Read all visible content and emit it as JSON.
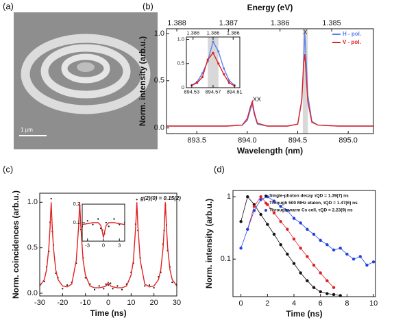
{
  "panel_a": {
    "label": "(a)",
    "scale_bar": "1 µm"
  },
  "chart_data": [
    {
      "type": "line",
      "panel": "(b)",
      "xlabel": "Wavelength (nm)",
      "ylabel": "Norm. intensity (arb.u.)",
      "x2label": "Energy (eV)",
      "xlim": [
        893.2,
        895.25
      ],
      "xticks": [
        893.5,
        {
          "value": 894.0,
          "label": "894.0"
        },
        894.5,
        {
          "value": 895.0,
          "label": "895.0"
        }
      ],
      "ylim": [
        -0.06,
        1.05
      ],
      "yticks": [
        {
          "value": 0.0,
          "label": "0.0"
        },
        0.5,
        {
          "value": 1.0,
          "label": "1.0"
        }
      ],
      "x2lim": [
        1.3882,
        1.38419
      ],
      "x2ticks": [
        1.388,
        1.387,
        1.386,
        1.385
      ],
      "shaded_x": [
        894.55,
        894.6
      ],
      "annotations": [
        "XX",
        "X"
      ],
      "legend": "upper right",
      "x": [
        893.2,
        893.5,
        893.8,
        893.95,
        894.0,
        894.03,
        894.05,
        894.07,
        894.1,
        894.2,
        894.4,
        894.5,
        894.54,
        894.56,
        894.57,
        894.58,
        894.6,
        894.64,
        894.7,
        894.9,
        895.25
      ],
      "series": [
        {
          "name": "H - pol.",
          "color": "#5b7ff0",
          "values": [
            0.02,
            0.02,
            0.02,
            0.03,
            0.08,
            0.19,
            0.25,
            0.14,
            0.04,
            0.02,
            0.02,
            0.04,
            0.28,
            0.75,
            1.0,
            0.8,
            0.35,
            0.07,
            0.03,
            0.02,
            0.02
          ]
        },
        {
          "name": "V - pol.",
          "color": "#e02020",
          "values": [
            0.02,
            0.02,
            0.02,
            0.03,
            0.1,
            0.22,
            0.28,
            0.16,
            0.05,
            0.02,
            0.02,
            0.04,
            0.3,
            0.7,
            0.78,
            0.62,
            0.28,
            0.06,
            0.03,
            0.02,
            0.02
          ]
        }
      ]
    },
    {
      "type": "line",
      "markers": true,
      "xlim": [
        894.52,
        894.62
      ],
      "xticks": [
        894.53,
        894.57,
        894.61
      ],
      "ylim": [
        0,
        1.05
      ],
      "yticks": [
        0,
        0.5,
        {
          "value": 1.0,
          "label": "1.0"
        }
      ],
      "x2lim": [
        1.38605,
        1.38589
      ],
      "x2ticks": [
        {
          "value": 1.38603,
          "label": "1.386"
        },
        {
          "value": 1.38597,
          "label": "1.386"
        },
        {
          "value": 1.38591,
          "label": "1.386"
        }
      ],
      "shaded_x": [
        894.56,
        894.58
      ],
      "x": [
        894.53,
        894.54,
        894.55,
        894.56,
        894.57,
        894.58,
        894.59,
        894.6,
        894.61
      ],
      "series": [
        {
          "color": "#5b7ff0",
          "values": [
            0.05,
            0.12,
            0.3,
            0.55,
            0.95,
            0.75,
            0.4,
            0.15,
            0.05
          ]
        },
        {
          "color": "#e02020",
          "values": [
            0.05,
            0.1,
            0.22,
            0.58,
            0.72,
            0.5,
            0.28,
            0.1,
            0.04
          ]
        }
      ]
    },
    {
      "type": "line",
      "panel": "(c)",
      "xlabel": "Time (ns)",
      "ylabel": "Norm. coincidences (arb.u.)",
      "annotation": "g(2)(0) = 0.15(2)",
      "xlim": [
        -30,
        30
      ],
      "xticks": [
        -30,
        -20,
        -10,
        0,
        10,
        20,
        30
      ],
      "ylim": [
        -0.03,
        1.1
      ],
      "yticks": [
        {
          "value": 0.0,
          "label": "0.0"
        },
        0.5,
        {
          "value": 1.0,
          "label": "1.0"
        }
      ],
      "x": [
        -30,
        -28,
        -27,
        -26,
        -25.5,
        -25,
        -24.5,
        -24,
        -23,
        -22,
        -20,
        -18,
        -16,
        -14,
        -13,
        -12.5,
        -12,
        -11,
        -10,
        -8,
        -6,
        -4,
        -2,
        -1,
        0,
        1,
        2,
        4,
        6,
        8,
        10,
        11,
        12,
        12.5,
        13,
        14,
        16,
        18,
        20,
        22,
        23,
        24,
        24.5,
        25,
        25.5,
        26,
        27,
        28,
        30
      ],
      "series": [
        {
          "type": "scatter",
          "color": "#111111",
          "values": [
            0.1,
            0.13,
            0.29,
            0.46,
            0.78,
            1.04,
            0.68,
            0.53,
            0.22,
            0.17,
            0.05,
            0.09,
            0.12,
            0.33,
            0.77,
            0.96,
            0.7,
            0.39,
            0.17,
            0.1,
            0.04,
            0.08,
            0.05,
            0.1,
            0.09,
            0.11,
            0.05,
            0.08,
            0.04,
            0.1,
            0.23,
            0.33,
            0.76,
            1.03,
            0.69,
            0.39,
            0.08,
            0.09,
            0.06,
            0.18,
            0.23,
            0.54,
            0.69,
            0.97,
            0.75,
            0.47,
            0.29,
            0.12,
            0.1
          ]
        },
        {
          "color": "#e02020",
          "values": [
            0.08,
            0.15,
            0.26,
            0.5,
            0.72,
            1.0,
            0.72,
            0.5,
            0.26,
            0.15,
            0.08,
            0.07,
            0.1,
            0.36,
            0.73,
            1.0,
            0.73,
            0.36,
            0.2,
            0.08,
            0.06,
            0.06,
            0.07,
            0.08,
            0.12,
            0.08,
            0.07,
            0.06,
            0.06,
            0.08,
            0.2,
            0.36,
            0.73,
            1.0,
            0.73,
            0.36,
            0.1,
            0.07,
            0.08,
            0.15,
            0.26,
            0.5,
            0.72,
            1.0,
            0.72,
            0.5,
            0.26,
            0.15,
            0.08
          ]
        }
      ]
    },
    {
      "type": "line",
      "xlim": [
        -4,
        4
      ],
      "xticks": [
        -3,
        0,
        3
      ],
      "ylim": [
        0,
        0.2
      ],
      "yticks": [
        0.1,
        0.2
      ],
      "x": [
        -4,
        -3,
        -2,
        -1,
        -0.5,
        -0.2,
        0,
        0.2,
        0.5,
        1,
        2,
        3,
        4
      ],
      "series": [
        {
          "type": "scatter",
          "color": "#111111",
          "values": [
            0.08,
            0.11,
            0.09,
            0.12,
            0.07,
            0.06,
            0.03,
            0.04,
            0.1,
            0.08,
            0.12,
            0.09,
            0.1
          ]
        },
        {
          "color": "#e02020",
          "values": [
            0.09,
            0.095,
            0.1,
            0.1,
            0.085,
            0.05,
            0.02,
            0.05,
            0.085,
            0.1,
            0.1,
            0.095,
            0.09
          ]
        }
      ]
    },
    {
      "type": "line",
      "markers": true,
      "panel": "(d)",
      "xlabel": "Time (ns)",
      "ylabel": "Norm. intensity (arb.u.)",
      "log_y": true,
      "legend": "upper right",
      "xlim": [
        -0.6,
        10.15
      ],
      "xticks": [
        0,
        2,
        4,
        6,
        8,
        10
      ],
      "ylim": [
        0.025,
        1.26
      ],
      "yticks": [
        0.1,
        1
      ],
      "series": [
        {
          "name": "Single-photon decay τQD = 1.39(7) ns",
          "color": "#111111",
          "x": [
            0,
            0.5,
            1,
            1.5,
            2,
            2.5,
            3,
            3.5,
            4,
            4.5,
            5,
            5.5,
            6,
            6.5,
            7,
            7.5
          ],
          "values": [
            0.4,
            1.0,
            0.75,
            0.52,
            0.36,
            0.25,
            0.17,
            0.12,
            0.085,
            0.06,
            0.045,
            0.035,
            0.03,
            0.028,
            0.027,
            0.026
          ]
        },
        {
          "name": "Through 500 MHz etalon, τQD = 1.47(6) ns",
          "color": "#e02020",
          "x": [
            0.5,
            1,
            1.5,
            2,
            2.5,
            3,
            3.5,
            4,
            4.5,
            5,
            5.5,
            6,
            6.5,
            7
          ],
          "values": [
            0.3,
            0.7,
            1.0,
            0.75,
            0.55,
            0.4,
            0.3,
            0.21,
            0.15,
            0.11,
            0.08,
            0.06,
            0.045,
            0.035
          ]
        },
        {
          "name": "Through warm Cs cell, τQD = 2.23(9) ns",
          "color": "#2040e0",
          "x": [
            0,
            0.5,
            1,
            1.5,
            2,
            2.5,
            3,
            3.5,
            4,
            4.5,
            5,
            5.5,
            6,
            6.5,
            7,
            7.5,
            8,
            8.5,
            9,
            9.5,
            10
          ],
          "values": [
            0.15,
            0.3,
            0.6,
            0.9,
            1.0,
            0.85,
            0.7,
            0.6,
            0.45,
            0.38,
            0.3,
            0.25,
            0.2,
            0.17,
            0.14,
            0.15,
            0.12,
            0.1,
            0.11,
            0.08,
            0.09
          ]
        }
      ]
    }
  ]
}
